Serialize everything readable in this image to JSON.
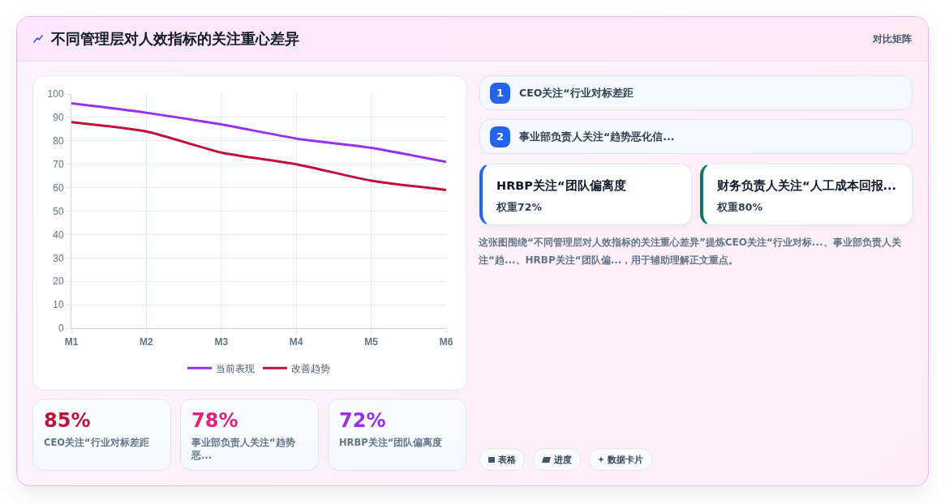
{
  "chart_data": [
    {
      "type": "other",
      "title": "不同管理层对人效指标的关注重心差异",
      "annotations": [
        "对比矩阵"
      ]
    },
    {
      "type": "line",
      "categories": [
        "M1",
        "M2",
        "M3",
        "M4",
        "M5",
        "M6"
      ],
      "series": [
        {
          "name": "当前表现",
          "color": "#9333ea",
          "values": [
            96,
            92,
            87,
            81,
            77,
            71
          ]
        },
        {
          "name": "改善趋势",
          "color": "#be123c",
          "values": [
            88,
            84,
            75,
            70,
            63,
            59
          ]
        }
      ],
      "ylim": [
        0,
        100
      ],
      "yticks": [
        0,
        10,
        20,
        30,
        40,
        50,
        60,
        70,
        80,
        90,
        100
      ],
      "grid": true,
      "legend": "bottom",
      "marker": "none",
      "line_style": "solid"
    },
    {
      "type": "other",
      "annotations": [
        "1",
        "CEO关注“行业对标差距",
        "2",
        "事业部负责人关注“趋势恶化信...",
        "HRBP关注“团队偏离度",
        "权重72%",
        "财务负责人关注“人工成本回报...",
        "权重80%",
        "这张图围绕“不同管理层对人效指标的关注重心差异”提炼CEO关注“行业对标...、事业部负责人关注“趋...、HRBP关注“团队偏...，用于辅助理解正文重点。",
        "表格",
        "进度",
        "数据卡片"
      ]
    },
    {
      "type": "other",
      "annotations": [
        "85%",
        "CEO关注“行业对标差距",
        "78%",
        "事业部负责人关注“趋势恶...",
        "72%",
        "HRBP关注“团队偏离度"
      ]
    }
  ]
}
